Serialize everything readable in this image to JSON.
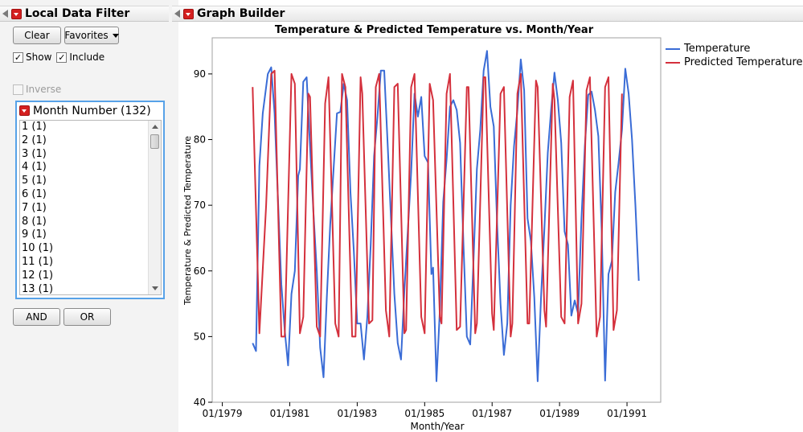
{
  "left_panel": {
    "title": "Local Data Filter",
    "clear_label": "Clear",
    "favorites_label": "Favorites",
    "show_label": "Show",
    "include_label": "Include",
    "inverse_label": "Inverse",
    "filter_title": "Month Number (132)",
    "list_items": [
      "1 (1)",
      "2 (1)",
      "3 (1)",
      "4 (1)",
      "5 (1)",
      "6 (1)",
      "7 (1)",
      "8 (1)",
      "9 (1)",
      "10 (1)",
      "11 (1)",
      "12 (1)",
      "13 (1)"
    ],
    "and_label": "AND",
    "or_label": "OR"
  },
  "right_panel": {
    "title": "Graph Builder"
  },
  "colors": {
    "temperature": "#3a6cd6",
    "predicted": "#d4303c",
    "axis": "#000000",
    "focus_border": "#57a2e8"
  },
  "chart_data": {
    "type": "line",
    "title": "Temperature & Predicted Temperature vs. Month/Year",
    "xlabel": "Month/Year",
    "ylabel": "Temperature & Predicted Temperature",
    "x_tick_labels": [
      "01/1979",
      "01/1981",
      "01/1983",
      "01/1985",
      "01/1987",
      "01/1989",
      "01/1991"
    ],
    "x_tick_years": [
      1979,
      1981,
      1983,
      1985,
      1987,
      1989,
      1991
    ],
    "y_tick_labels": [
      "40",
      "50",
      "60",
      "70",
      "80",
      "90"
    ],
    "xlim": [
      1978.7,
      1992.0
    ],
    "ylim": [
      40,
      95.5
    ],
    "grid": false,
    "legend_position": "right",
    "series": [
      {
        "name": "Temperature",
        "color": "#3a6cd6",
        "points": [
          [
            1979.9,
            49
          ],
          [
            1980.0,
            47.8
          ],
          [
            1980.1,
            76
          ],
          [
            1980.2,
            84
          ],
          [
            1980.35,
            90
          ],
          [
            1980.45,
            91
          ],
          [
            1980.55,
            84
          ],
          [
            1980.65,
            71
          ],
          [
            1980.75,
            58
          ],
          [
            1980.85,
            51
          ],
          [
            1980.95,
            45.6
          ],
          [
            1981.05,
            56.5
          ],
          [
            1981.15,
            60
          ],
          [
            1981.25,
            74.5
          ],
          [
            1981.3,
            75.5
          ],
          [
            1981.4,
            88.8
          ],
          [
            1981.5,
            89.5
          ],
          [
            1981.6,
            79
          ],
          [
            1981.7,
            69
          ],
          [
            1981.8,
            60
          ],
          [
            1981.9,
            48.3
          ],
          [
            1982.0,
            43.8
          ],
          [
            1982.1,
            56
          ],
          [
            1982.2,
            67
          ],
          [
            1982.3,
            75.5
          ],
          [
            1982.4,
            84
          ],
          [
            1982.5,
            84.2
          ],
          [
            1982.6,
            88.5
          ],
          [
            1982.7,
            86
          ],
          [
            1982.8,
            72
          ],
          [
            1982.9,
            63
          ],
          [
            1983.0,
            52
          ],
          [
            1983.1,
            52
          ],
          [
            1983.2,
            46.5
          ],
          [
            1983.3,
            53
          ],
          [
            1983.4,
            64
          ],
          [
            1983.5,
            77.5
          ],
          [
            1983.6,
            83.5
          ],
          [
            1983.7,
            90.5
          ],
          [
            1983.8,
            90.5
          ],
          [
            1983.9,
            79.5
          ],
          [
            1984.0,
            68
          ],
          [
            1984.1,
            56.5
          ],
          [
            1984.2,
            49
          ],
          [
            1984.3,
            46.5
          ],
          [
            1984.4,
            57
          ],
          [
            1984.5,
            66
          ],
          [
            1984.6,
            75
          ],
          [
            1984.7,
            87
          ],
          [
            1984.8,
            83.5
          ],
          [
            1984.9,
            86.5
          ],
          [
            1985.0,
            77.5
          ],
          [
            1985.1,
            76.5
          ],
          [
            1985.2,
            59.5
          ],
          [
            1985.25,
            60.5
          ],
          [
            1985.35,
            43.2
          ],
          [
            1985.45,
            54
          ],
          [
            1985.55,
            70.5
          ],
          [
            1985.65,
            77
          ],
          [
            1985.75,
            85
          ],
          [
            1985.85,
            86
          ],
          [
            1985.95,
            84.5
          ],
          [
            1986.05,
            79.5
          ],
          [
            1986.15,
            64
          ],
          [
            1986.25,
            50
          ],
          [
            1986.35,
            48.8
          ],
          [
            1986.45,
            62
          ],
          [
            1986.55,
            75.5
          ],
          [
            1986.65,
            81.5
          ],
          [
            1986.75,
            90.5
          ],
          [
            1986.85,
            93.5
          ],
          [
            1986.95,
            85
          ],
          [
            1987.05,
            82
          ],
          [
            1987.15,
            67
          ],
          [
            1987.25,
            55
          ],
          [
            1987.35,
            47.2
          ],
          [
            1987.45,
            52
          ],
          [
            1987.55,
            70
          ],
          [
            1987.65,
            79
          ],
          [
            1987.75,
            84.5
          ],
          [
            1987.85,
            92.2
          ],
          [
            1987.95,
            87.5
          ],
          [
            1988.05,
            68
          ],
          [
            1988.15,
            64.5
          ],
          [
            1988.25,
            56
          ],
          [
            1988.35,
            43.2
          ],
          [
            1988.45,
            56
          ],
          [
            1988.55,
            66.5
          ],
          [
            1988.65,
            78
          ],
          [
            1988.75,
            84.5
          ],
          [
            1988.85,
            90.2
          ],
          [
            1988.95,
            86
          ],
          [
            1989.05,
            79.5
          ],
          [
            1989.15,
            66
          ],
          [
            1989.25,
            64
          ],
          [
            1989.35,
            53.2
          ],
          [
            1989.45,
            55.5
          ],
          [
            1989.55,
            53.5
          ],
          [
            1989.65,
            68
          ],
          [
            1989.75,
            79
          ],
          [
            1989.85,
            86.8
          ],
          [
            1989.95,
            87.3
          ],
          [
            1990.05,
            84.5
          ],
          [
            1990.15,
            80.5
          ],
          [
            1990.25,
            66
          ],
          [
            1990.35,
            43.3
          ],
          [
            1990.45,
            59.5
          ],
          [
            1990.55,
            61.5
          ],
          [
            1990.65,
            72
          ],
          [
            1990.75,
            76.5
          ],
          [
            1990.85,
            81.5
          ],
          [
            1990.95,
            90.8
          ],
          [
            1991.05,
            87
          ],
          [
            1991.15,
            80
          ],
          [
            1991.25,
            70
          ],
          [
            1991.35,
            58.5
          ]
        ]
      },
      {
        "name": "Predicted Temperature",
        "color": "#d4303c",
        "points": [
          [
            1979.9,
            88
          ],
          [
            1980.1,
            50.5
          ],
          [
            1980.3,
            70
          ],
          [
            1980.45,
            90
          ],
          [
            1980.55,
            90.5
          ],
          [
            1980.75,
            50
          ],
          [
            1980.85,
            50
          ],
          [
            1981.05,
            90
          ],
          [
            1981.15,
            88.5
          ],
          [
            1981.3,
            50.5
          ],
          [
            1981.4,
            53
          ],
          [
            1981.55,
            87
          ],
          [
            1981.6,
            86.5
          ],
          [
            1981.8,
            51.5
          ],
          [
            1981.9,
            50
          ],
          [
            1982.05,
            85.5
          ],
          [
            1982.15,
            89.5
          ],
          [
            1982.35,
            52
          ],
          [
            1982.45,
            50
          ],
          [
            1982.55,
            90
          ],
          [
            1982.65,
            88
          ],
          [
            1982.85,
            50
          ],
          [
            1982.95,
            50
          ],
          [
            1983.1,
            89.5
          ],
          [
            1983.15,
            87
          ],
          [
            1983.35,
            52
          ],
          [
            1983.45,
            52.5
          ],
          [
            1983.55,
            88
          ],
          [
            1983.65,
            90
          ],
          [
            1983.85,
            54
          ],
          [
            1983.95,
            50
          ],
          [
            1984.1,
            88
          ],
          [
            1984.2,
            88.5
          ],
          [
            1984.4,
            50.5
          ],
          [
            1984.45,
            51
          ],
          [
            1984.6,
            88
          ],
          [
            1984.7,
            90
          ],
          [
            1984.9,
            53
          ],
          [
            1985.0,
            50.5
          ],
          [
            1985.15,
            88.5
          ],
          [
            1985.25,
            86
          ],
          [
            1985.45,
            53
          ],
          [
            1985.5,
            52
          ],
          [
            1985.65,
            87
          ],
          [
            1985.75,
            90
          ],
          [
            1985.95,
            51
          ],
          [
            1986.05,
            51.5
          ],
          [
            1986.25,
            88
          ],
          [
            1986.3,
            88
          ],
          [
            1986.5,
            50.5
          ],
          [
            1986.55,
            52
          ],
          [
            1986.75,
            89.5
          ],
          [
            1986.8,
            89.5
          ],
          [
            1987.0,
            53.5
          ],
          [
            1987.05,
            51
          ],
          [
            1987.25,
            87
          ],
          [
            1987.35,
            88
          ],
          [
            1987.55,
            50
          ],
          [
            1987.6,
            52
          ],
          [
            1987.75,
            87
          ],
          [
            1987.85,
            90
          ],
          [
            1988.05,
            52
          ],
          [
            1988.1,
            52
          ],
          [
            1988.3,
            89
          ],
          [
            1988.35,
            88
          ],
          [
            1988.55,
            54
          ],
          [
            1988.6,
            51.5
          ],
          [
            1988.8,
            88.5
          ],
          [
            1988.85,
            86
          ],
          [
            1989.05,
            53
          ],
          [
            1989.15,
            52
          ],
          [
            1989.3,
            86.5
          ],
          [
            1989.4,
            89
          ],
          [
            1989.55,
            52
          ],
          [
            1989.65,
            55
          ],
          [
            1989.8,
            87.5
          ],
          [
            1989.9,
            89.5
          ],
          [
            1990.1,
            50
          ],
          [
            1990.2,
            53
          ],
          [
            1990.35,
            88
          ],
          [
            1990.45,
            89.5
          ],
          [
            1990.6,
            51
          ],
          [
            1990.7,
            54
          ],
          [
            1990.85,
            87
          ]
        ]
      }
    ]
  }
}
